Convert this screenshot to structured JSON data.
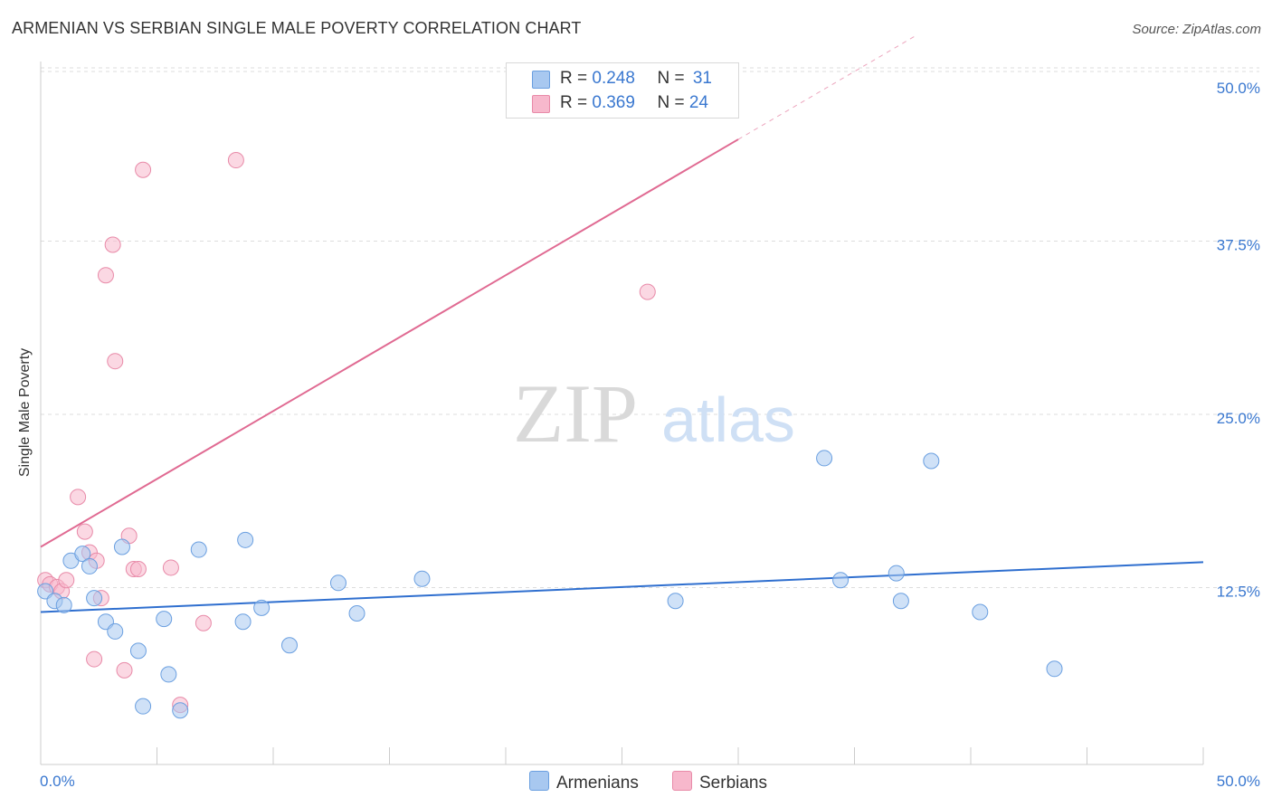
{
  "header": {
    "title": "ARMENIAN VS SERBIAN SINGLE MALE POVERTY CORRELATION CHART",
    "source": "Source: ZipAtlas.com"
  },
  "watermark": {
    "zip": "ZIP",
    "atlas": "atlas"
  },
  "colors": {
    "armenians_fill": "#a8c8f0",
    "armenians_stroke": "#6a9fe0",
    "armenians_line": "#2f6fcf",
    "serbians_fill": "#f7b8cc",
    "serbians_stroke": "#e88aa8",
    "serbians_line": "#e06a92",
    "axis_tick_text": "#3a78d0",
    "grid": "#dddddd"
  },
  "legend": {
    "rows": [
      {
        "r_label": "R = ",
        "r_value": "0.248",
        "n_label": "N = ",
        "n_value": "31"
      },
      {
        "r_label": "R = ",
        "r_value": "0.369",
        "n_label": "N = ",
        "n_value": "24"
      }
    ]
  },
  "chart_data": {
    "type": "scatter",
    "title": "ARMENIAN VS SERBIAN SINGLE MALE POVERTY CORRELATION CHART",
    "xlabel": "",
    "ylabel": "Single Male Poverty",
    "xlim": [
      0,
      50
    ],
    "ylim": [
      0,
      50
    ],
    "x_tick_labels": [
      "0.0%",
      "50.0%"
    ],
    "y_ticks": [
      12.5,
      25.0,
      37.5,
      50.0
    ],
    "y_tick_labels": [
      "12.5%",
      "25.0%",
      "37.5%",
      "50.0%"
    ],
    "grid": true,
    "legend_position": "top-center",
    "series": [
      {
        "name": "Armenians",
        "r": 0.248,
        "n": 31,
        "trend": {
          "x": [
            0,
            50
          ],
          "y": [
            11.0,
            14.6
          ]
        },
        "points": [
          {
            "x": 0.2,
            "y": 12.5
          },
          {
            "x": 0.6,
            "y": 11.8
          },
          {
            "x": 1.0,
            "y": 11.5
          },
          {
            "x": 1.3,
            "y": 14.7
          },
          {
            "x": 1.8,
            "y": 15.2
          },
          {
            "x": 2.1,
            "y": 14.3
          },
          {
            "x": 2.3,
            "y": 12.0
          },
          {
            "x": 2.8,
            "y": 10.3
          },
          {
            "x": 3.2,
            "y": 9.6
          },
          {
            "x": 3.5,
            "y": 15.7
          },
          {
            "x": 4.2,
            "y": 8.2
          },
          {
            "x": 4.4,
            "y": 4.2
          },
          {
            "x": 5.3,
            "y": 10.5
          },
          {
            "x": 5.5,
            "y": 6.5
          },
          {
            "x": 6.0,
            "y": 3.9
          },
          {
            "x": 6.8,
            "y": 15.5
          },
          {
            "x": 8.7,
            "y": 10.3
          },
          {
            "x": 8.8,
            "y": 16.2
          },
          {
            "x": 9.5,
            "y": 11.3
          },
          {
            "x": 10.7,
            "y": 8.6
          },
          {
            "x": 12.8,
            "y": 13.1
          },
          {
            "x": 13.6,
            "y": 10.9
          },
          {
            "x": 16.4,
            "y": 13.4
          },
          {
            "x": 27.3,
            "y": 11.8
          },
          {
            "x": 33.7,
            "y": 22.1
          },
          {
            "x": 34.4,
            "y": 13.3
          },
          {
            "x": 36.8,
            "y": 13.8
          },
          {
            "x": 37.0,
            "y": 11.8
          },
          {
            "x": 38.3,
            "y": 21.9
          },
          {
            "x": 40.4,
            "y": 11.0
          },
          {
            "x": 43.6,
            "y": 6.9
          }
        ]
      },
      {
        "name": "Serbians",
        "r": 0.369,
        "n": 24,
        "trend": {
          "x": [
            0,
            50
          ],
          "y": [
            15.7,
            64.7
          ]
        },
        "trend_solid_until_x": 30,
        "points": [
          {
            "x": 0.2,
            "y": 13.3
          },
          {
            "x": 0.4,
            "y": 13.0
          },
          {
            "x": 0.7,
            "y": 12.8
          },
          {
            "x": 0.9,
            "y": 12.5
          },
          {
            "x": 1.1,
            "y": 13.3
          },
          {
            "x": 1.6,
            "y": 19.3
          },
          {
            "x": 1.9,
            "y": 16.8
          },
          {
            "x": 2.1,
            "y": 15.3
          },
          {
            "x": 2.4,
            "y": 14.7
          },
          {
            "x": 2.3,
            "y": 7.6
          },
          {
            "x": 2.6,
            "y": 12.0
          },
          {
            "x": 2.8,
            "y": 35.3
          },
          {
            "x": 3.1,
            "y": 37.5
          },
          {
            "x": 3.2,
            "y": 29.1
          },
          {
            "x": 3.6,
            "y": 6.8
          },
          {
            "x": 3.8,
            "y": 16.5
          },
          {
            "x": 4.0,
            "y": 14.1
          },
          {
            "x": 4.2,
            "y": 14.1
          },
          {
            "x": 4.4,
            "y": 42.9
          },
          {
            "x": 5.6,
            "y": 14.2
          },
          {
            "x": 6.0,
            "y": 4.3
          },
          {
            "x": 7.0,
            "y": 10.2
          },
          {
            "x": 8.4,
            "y": 43.6
          },
          {
            "x": 26.1,
            "y": 34.1
          }
        ]
      }
    ]
  },
  "bottom_legend": {
    "armenians": "Armenians",
    "serbians": "Serbians"
  }
}
